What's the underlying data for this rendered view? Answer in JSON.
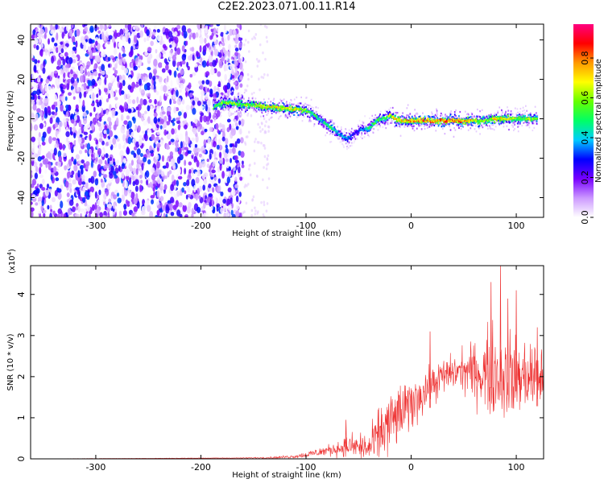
{
  "title": "C2E2.2023.071.00.11.R14",
  "chart_data": [
    {
      "type": "heatmap",
      "xlabel": "Height of straight line (km)",
      "ylabel": "Frequency (Hz)",
      "xlim": [
        -362,
        126
      ],
      "ylim": [
        -50,
        48
      ],
      "x_ticks": [
        -300,
        -200,
        -100,
        0,
        100
      ],
      "y_ticks": [
        -40,
        -20,
        0,
        20,
        40
      ],
      "x_tick_labels": [
        "-300",
        "-200",
        "-100",
        "0",
        "100"
      ],
      "y_tick_labels": [
        "-40",
        "-20",
        "0",
        "20",
        "40"
      ],
      "colorbar": {
        "label": "Normalized spectral amplitude",
        "range": [
          0,
          0.97
        ],
        "ticks": [
          0.0,
          0.2,
          0.4,
          0.6,
          0.8
        ],
        "tick_labels": [
          "0.0",
          "0.2",
          "0.4",
          "0.6",
          "0.8"
        ],
        "colors": [
          "#ffffff",
          "#cc99ff",
          "#7700ff",
          "#0000ff",
          "#00ccff",
          "#00ff66",
          "#66ff00",
          "#ffff00",
          "#ff9900",
          "#ff0000",
          "#ff0080"
        ]
      },
      "noise_region": {
        "x_range": [
          -362,
          -160
        ],
        "y_range": [
          -50,
          48
        ],
        "level": 0.15
      },
      "ridge": {
        "x": [
          -188,
          -180,
          -170,
          -160,
          -150,
          -140,
          -130,
          -120,
          -110,
          -100,
          -95,
          -90,
          -85,
          -80,
          -75,
          -70,
          -65,
          -60,
          -55,
          -50,
          -45,
          -40,
          -35,
          -30,
          -25,
          -20,
          -15,
          -10,
          0,
          10,
          20,
          30,
          40,
          50,
          60,
          70,
          80,
          90,
          100,
          110,
          120
        ],
        "frequency": [
          6,
          8,
          8,
          7,
          7,
          6,
          6,
          5,
          5,
          4,
          3,
          1,
          -1,
          -3,
          -5,
          -7,
          -9,
          -10,
          -8,
          -6,
          -5,
          -5,
          -2,
          0,
          0,
          2,
          0,
          -1,
          -1,
          -1,
          -1,
          -1,
          -1,
          -1,
          -1,
          -1,
          0,
          0,
          0,
          0,
          0
        ],
        "amplitude": [
          0.5,
          0.6,
          0.6,
          0.6,
          0.6,
          0.7,
          0.7,
          0.7,
          0.7,
          0.6,
          0.5,
          0.5,
          0.4,
          0.5,
          0.5,
          0.4,
          0.4,
          0.4,
          0.3,
          0.3,
          0.4,
          0.5,
          0.5,
          0.5,
          0.5,
          0.6,
          0.7,
          0.7,
          0.8,
          0.8,
          0.8,
          0.8,
          0.8,
          0.8,
          0.7,
          0.6,
          0.7,
          0.7,
          0.6,
          0.6,
          0.6
        ]
      }
    },
    {
      "type": "line",
      "xlabel": "Height of straight line (km)",
      "ylabel": "SNR (10 * v/v)",
      "y_multiplier": "(x10^4)",
      "multiplier_base": "(x10",
      "multiplier_exponent": "4",
      "multiplier_close": ")",
      "xlim": [
        -362,
        126
      ],
      "ylim": [
        0,
        4.7
      ],
      "x_ticks": [
        -300,
        -200,
        -100,
        0,
        100
      ],
      "y_ticks": [
        0,
        1,
        2,
        3,
        4
      ],
      "x_tick_labels": [
        "-300",
        "-200",
        "-100",
        "0",
        "100"
      ],
      "y_tick_labels": [
        "0",
        "1",
        "2",
        "3",
        "4"
      ],
      "color": "#ee3333",
      "envelope": {
        "x": [
          -362,
          -160,
          -130,
          -110,
          -100,
          -90,
          -80,
          -70,
          -60,
          -50,
          -40,
          -35,
          -30,
          -20,
          -10,
          0,
          10,
          20,
          30,
          40,
          50,
          60,
          70,
          80,
          90,
          100,
          110,
          120,
          126
        ],
        "mean": [
          0.0,
          0.02,
          0.03,
          0.06,
          0.1,
          0.15,
          0.2,
          0.25,
          0.3,
          0.3,
          0.25,
          0.4,
          0.6,
          0.9,
          1.1,
          1.3,
          1.6,
          1.8,
          2.0,
          2.1,
          2.15,
          2.1,
          2.1,
          2.1,
          2.0,
          2.0,
          2.0,
          2.0,
          2.0
        ],
        "spread": [
          0.0,
          0.01,
          0.03,
          0.05,
          0.08,
          0.12,
          0.15,
          0.2,
          0.3,
          0.4,
          0.45,
          0.6,
          0.8,
          0.9,
          0.8,
          0.7,
          0.6,
          0.5,
          0.5,
          0.5,
          0.6,
          0.8,
          1.1,
          1.3,
          1.3,
          1.1,
          1.0,
          1.0,
          1.0
        ]
      },
      "peaks": [
        {
          "x": 76,
          "y": 4.3
        },
        {
          "x": 85,
          "y": 4.7
        },
        {
          "x": 92,
          "y": 3.9
        },
        {
          "x": 100,
          "y": 4.1
        },
        {
          "x": 120,
          "y": 3.2
        },
        {
          "x": -62,
          "y": 0.95
        },
        {
          "x": 18,
          "y": 3.1
        }
      ]
    }
  ]
}
